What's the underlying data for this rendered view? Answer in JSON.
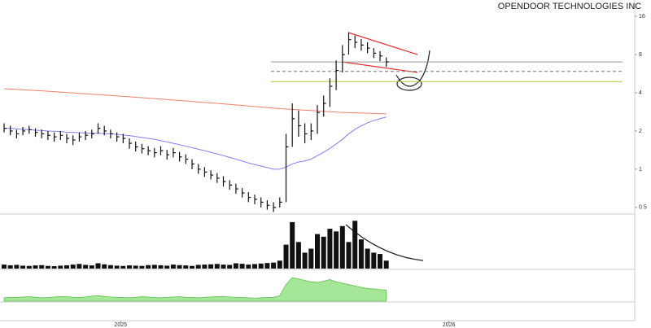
{
  "chart_data": [
    {
      "type": "ohlc",
      "title": "OPENDOOR TECHNOLOGIES INC",
      "log_scale": true,
      "ylim": [
        0.45,
        20
      ],
      "yticks": [
        0.5,
        1,
        2,
        4,
        8,
        16
      ],
      "xticks": [
        {
          "value": 18.6,
          "label": "2025"
        },
        {
          "value": 71,
          "label": "2026"
        }
      ],
      "color": "#111111",
      "high": [
        2.3,
        2.2,
        2.05,
        2.15,
        2.2,
        2.1,
        2.05,
        2.0,
        1.95,
        2.0,
        1.9,
        1.85,
        1.95,
        2.0,
        2.05,
        2.3,
        2.2,
        2.05,
        1.95,
        1.9,
        1.75,
        1.65,
        1.58,
        1.52,
        1.47,
        1.52,
        1.42,
        1.47,
        1.37,
        1.31,
        1.2,
        1.1,
        1.04,
        0.98,
        0.93,
        0.88,
        0.82,
        0.77,
        0.71,
        0.66,
        0.63,
        0.6,
        0.57,
        0.55,
        0.6,
        1.9,
        3.3,
        2.9,
        2.3,
        2.3,
        3.2,
        3.8,
        5.2,
        7.2,
        9.5,
        12.0,
        11.3,
        10.6,
        10.0,
        9.0,
        8.5,
        7.6
      ],
      "low": [
        1.95,
        1.85,
        1.75,
        1.85,
        1.9,
        1.8,
        1.75,
        1.7,
        1.65,
        1.7,
        1.6,
        1.55,
        1.65,
        1.7,
        1.75,
        1.9,
        1.85,
        1.75,
        1.65,
        1.6,
        1.45,
        1.38,
        1.33,
        1.29,
        1.24,
        1.29,
        1.19,
        1.24,
        1.15,
        1.1,
        1.0,
        0.92,
        0.87,
        0.83,
        0.78,
        0.73,
        0.69,
        0.64,
        0.6,
        0.55,
        0.53,
        0.5,
        0.48,
        0.46,
        0.5,
        0.55,
        1.5,
        1.8,
        1.6,
        1.7,
        1.9,
        2.6,
        3.1,
        4.2,
        5.8,
        8.0,
        9.0,
        8.6,
        8.2,
        7.5,
        7.1,
        6.4
      ],
      "close": [
        2.1,
        2.0,
        1.9,
        2.0,
        2.05,
        1.95,
        1.9,
        1.85,
        1.8,
        1.85,
        1.75,
        1.7,
        1.8,
        1.85,
        1.9,
        2.1,
        2.0,
        1.9,
        1.8,
        1.75,
        1.6,
        1.5,
        1.45,
        1.4,
        1.35,
        1.4,
        1.3,
        1.35,
        1.25,
        1.2,
        1.1,
        1.0,
        0.95,
        0.9,
        0.85,
        0.8,
        0.75,
        0.7,
        0.65,
        0.6,
        0.58,
        0.55,
        0.52,
        0.5,
        0.55,
        1.5,
        2.5,
        2.2,
        1.9,
        2.0,
        2.8,
        3.3,
        4.5,
        6.0,
        8.0,
        10.5,
        10.0,
        9.5,
        9.0,
        8.2,
        7.8,
        7.0
      ],
      "series": [
        {
          "color": "#f08070",
          "values": [
            4.3,
            4.28,
            4.25,
            4.22,
            4.2,
            4.17,
            4.14,
            4.11,
            4.08,
            4.05,
            4.02,
            3.99,
            3.96,
            3.93,
            3.9,
            3.87,
            3.84,
            3.81,
            3.78,
            3.75,
            3.72,
            3.69,
            3.66,
            3.63,
            3.6,
            3.57,
            3.54,
            3.51,
            3.48,
            3.45,
            3.42,
            3.39,
            3.36,
            3.33,
            3.3,
            3.27,
            3.24,
            3.21,
            3.18,
            3.15,
            3.12,
            3.09,
            3.06,
            3.03,
            3.0,
            2.98,
            2.96,
            2.94,
            2.92,
            2.9,
            2.88,
            2.86,
            2.84,
            2.82,
            2.8,
            2.79,
            2.78,
            2.77,
            2.76,
            2.75,
            2.74,
            2.73
          ]
        },
        {
          "color": "#8080f0",
          "values": [
            2.1,
            2.1,
            2.08,
            2.06,
            2.05,
            2.03,
            2.02,
            2.0,
            1.99,
            1.98,
            1.96,
            1.95,
            1.94,
            1.93,
            1.92,
            1.92,
            1.91,
            1.9,
            1.88,
            1.86,
            1.84,
            1.81,
            1.78,
            1.75,
            1.72,
            1.68,
            1.64,
            1.6,
            1.56,
            1.52,
            1.48,
            1.44,
            1.4,
            1.36,
            1.32,
            1.28,
            1.24,
            1.2,
            1.16,
            1.12,
            1.09,
            1.06,
            1.03,
            1.0,
            1.0,
            1.04,
            1.1,
            1.14,
            1.16,
            1.2,
            1.28,
            1.36,
            1.46,
            1.58,
            1.72,
            1.9,
            2.06,
            2.2,
            2.32,
            2.42,
            2.5,
            2.58
          ]
        }
      ],
      "levels": [
        {
          "value": 7.0,
          "color": "#999999"
        },
        {
          "value": 5.9,
          "color": "#777777"
        },
        {
          "value": 4.9,
          "color": "#b8c830"
        }
      ]
    },
    {
      "type": "bar",
      "color": "#111111",
      "ylim": [
        0,
        380
      ],
      "values": [
        30,
        25,
        28,
        22,
        20,
        24,
        26,
        20,
        18,
        22,
        25,
        30,
        35,
        28,
        24,
        40,
        32,
        26,
        22,
        20,
        24,
        22,
        20,
        26,
        28,
        25,
        22,
        30,
        26,
        24,
        20,
        28,
        30,
        32,
        35,
        30,
        28,
        40,
        36,
        30,
        34,
        38,
        42,
        45,
        60,
        180,
        350,
        200,
        120,
        150,
        260,
        240,
        300,
        280,
        320,
        200,
        360,
        220,
        150,
        120,
        110,
        60
      ]
    },
    {
      "type": "area",
      "color": "#90e080",
      "ylim": [
        0,
        100
      ],
      "values": [
        12,
        14,
        13,
        15,
        16,
        14,
        12,
        13,
        15,
        17,
        16,
        14,
        13,
        15,
        18,
        20,
        17,
        15,
        14,
        13,
        12,
        14,
        16,
        15,
        13,
        12,
        14,
        15,
        16,
        14,
        13,
        12,
        14,
        15,
        16,
        17,
        15,
        14,
        13,
        12,
        11,
        12,
        13,
        14,
        20,
        60,
        85,
        80,
        75,
        70,
        68,
        72,
        78,
        70,
        65,
        60,
        55,
        50,
        46,
        44,
        42,
        40
      ]
    }
  ]
}
